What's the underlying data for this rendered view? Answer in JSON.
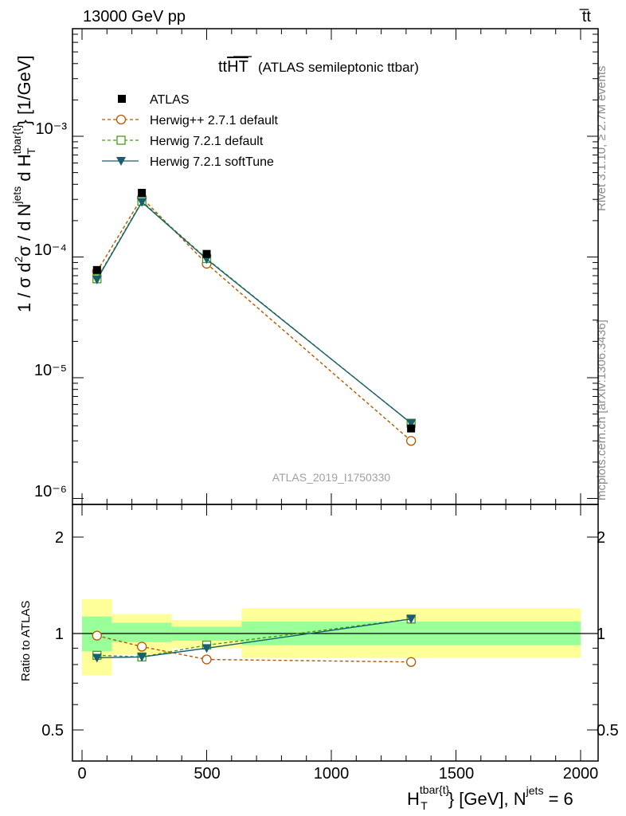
{
  "header": {
    "left": "13000 GeV pp",
    "right": "t̅t"
  },
  "side_labels": {
    "top": "Rivet 3.1.10, ≥ 2.7M events",
    "bottom": "mcplots.cern.ch [arXiv:1306.3436]"
  },
  "chart_data": [
    {
      "panel": "main",
      "type": "line",
      "title_main": "t t HT",
      "title_sub": "(ATLAS semileptonic ttbar)",
      "watermark": "ATLAS_2019_I1750330",
      "ylabel": "1 / σ d²σ / d N^jets d H_T^tbar{t} [1/GeV]",
      "yscale": "log",
      "ylim": [
        8e-07,
        0.0032
      ],
      "xlim": [
        -80,
        2050
      ],
      "y_ticks": [
        "10⁻⁶",
        "10⁻⁵",
        "10⁻⁴",
        "10⁻³"
      ],
      "legend_position": "top-left",
      "series": [
        {
          "name": "ATLAS",
          "color": "#000000",
          "marker": "square-filled",
          "line": "none",
          "x": [
            60,
            240,
            500,
            1320
          ],
          "y": [
            7.8e-05,
            0.00034,
            0.000106,
            3.8e-06
          ]
        },
        {
          "name": "Herwig++ 2.7.1 default",
          "color": "#b35900",
          "marker": "circle-open",
          "line": "dashed",
          "x": [
            60,
            240,
            500,
            1320
          ],
          "y": [
            7.6e-05,
            0.00031,
            8.8e-05,
            3e-06
          ]
        },
        {
          "name": "Herwig 7.2.1 default",
          "color": "#4a9a1a",
          "marker": "square-open",
          "line": "dashed",
          "x": [
            60,
            240,
            500,
            1320
          ],
          "y": [
            6.6e-05,
            0.00029,
            9.7e-05,
            4.2e-06
          ]
        },
        {
          "name": "Herwig 7.2.1 softTune",
          "color": "#1a5e6e",
          "marker": "triangle-down",
          "line": "solid",
          "x": [
            60,
            240,
            500,
            1320
          ],
          "y": [
            6.5e-05,
            0.000285,
            9.6e-05,
            4.2e-06
          ]
        }
      ]
    },
    {
      "panel": "ratio",
      "type": "line",
      "ylabel": "Ratio to ATLAS",
      "xlabel": "H_T^tbar{t} [GeV], N^jets = 6",
      "ylim": [
        0.4,
        2.3
      ],
      "xlim": [
        -80,
        2050
      ],
      "x_ticks": [
        "0",
        "500",
        "1000",
        "1500",
        "2000"
      ],
      "y_ticks": [
        "0.5",
        "1",
        "2"
      ],
      "bands": [
        {
          "x0": 0,
          "x1": 120,
          "inner": [
            0.88,
            1.13
          ],
          "outer": [
            0.74,
            1.28
          ]
        },
        {
          "x0": 120,
          "x1": 360,
          "inner": [
            0.94,
            1.08
          ],
          "outer": [
            0.86,
            1.15
          ]
        },
        {
          "x0": 360,
          "x1": 640,
          "inner": [
            0.95,
            1.05
          ],
          "outer": [
            0.9,
            1.1
          ]
        },
        {
          "x0": 640,
          "x1": 2000,
          "inner": [
            0.92,
            1.09
          ],
          "outer": [
            0.84,
            1.2
          ]
        }
      ],
      "series": [
        {
          "name": "Herwig++ 2.7.1 default",
          "color": "#b35900",
          "marker": "circle-open",
          "line": "dashed",
          "x": [
            60,
            240,
            500,
            1320
          ],
          "y": [
            0.985,
            0.91,
            0.83,
            0.815
          ]
        },
        {
          "name": "Herwig 7.2.1 default",
          "color": "#4a9a1a",
          "marker": "square-open",
          "line": "dashed",
          "x": [
            60,
            240,
            500,
            1320
          ],
          "y": [
            0.855,
            0.845,
            0.92,
            1.11
          ]
        },
        {
          "name": "Herwig 7.2.1 softTune",
          "color": "#1a5e6e",
          "marker": "triangle-down",
          "line": "solid",
          "x": [
            60,
            240,
            500,
            1320
          ],
          "y": [
            0.84,
            0.845,
            0.9,
            1.11
          ]
        }
      ]
    }
  ]
}
